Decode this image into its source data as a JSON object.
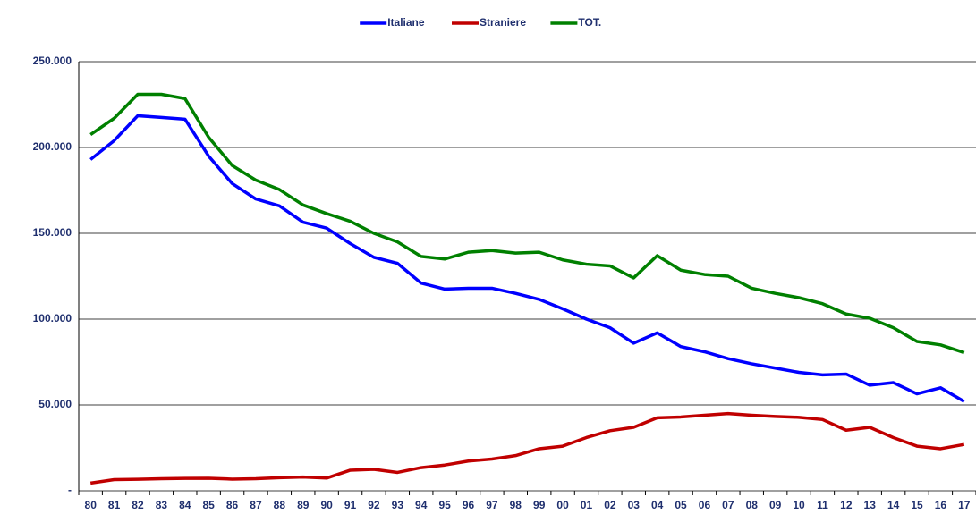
{
  "chart_data": {
    "type": "line",
    "categories": [
      "80",
      "81",
      "82",
      "83",
      "84",
      "85",
      "86",
      "87",
      "88",
      "89",
      "90",
      "91",
      "92",
      "93",
      "94",
      "95",
      "96",
      "97",
      "98",
      "99",
      "00",
      "01",
      "02",
      "03",
      "04",
      "05",
      "06",
      "07",
      "08",
      "09",
      "10",
      "11",
      "12",
      "13",
      "14",
      "15",
      "16",
      "17"
    ],
    "series": [
      {
        "name": "Italiane",
        "color": "#0000ff",
        "values": [
          193000,
          204000,
          218500,
          217500,
          216500,
          195000,
          179000,
          170000,
          166000,
          156500,
          153000,
          144000,
          136000,
          132500,
          121000,
          117500,
          118000,
          118000,
          115000,
          111500,
          106000,
          100000,
          95000,
          86000,
          92000,
          84000,
          81000,
          77000,
          74000,
          71500,
          69000,
          67500,
          68000,
          61500,
          63000,
          56500,
          60000,
          52000
        ]
      },
      {
        "name": "Straniere",
        "color": "#c00000",
        "values": [
          4500,
          6500,
          6700,
          7000,
          7200,
          7300,
          6800,
          7000,
          7600,
          8000,
          7400,
          12000,
          12500,
          10700,
          13500,
          15000,
          17300,
          18500,
          20500,
          24500,
          26000,
          31000,
          35000,
          37000,
          42500,
          43000,
          44000,
          45000,
          44000,
          43300,
          42800,
          41500,
          35300,
          37000,
          31000,
          26000,
          24500,
          27000
        ]
      },
      {
        "name": "TOT.",
        "color": "#008000",
        "values": [
          207500,
          217000,
          231000,
          231000,
          228500,
          206000,
          189500,
          181000,
          175500,
          166500,
          161500,
          157000,
          150000,
          145000,
          136500,
          135000,
          139000,
          140000,
          138500,
          139000,
          134500,
          132000,
          131000,
          124000,
          137000,
          128500,
          126000,
          125000,
          118000,
          115000,
          112500,
          109000,
          103000,
          100500,
          95000,
          87000,
          85000,
          80500
        ]
      }
    ],
    "ylim": [
      0,
      250000
    ],
    "yticks": [
      {
        "value": 0,
        "label": "-"
      },
      {
        "value": 50000,
        "label": "50.000"
      },
      {
        "value": 100000,
        "label": "100.000"
      },
      {
        "value": 150000,
        "label": "150.000"
      },
      {
        "value": 200000,
        "label": "200.000"
      },
      {
        "value": 250000,
        "label": "250.000"
      }
    ],
    "grid": true,
    "legend": "top"
  }
}
